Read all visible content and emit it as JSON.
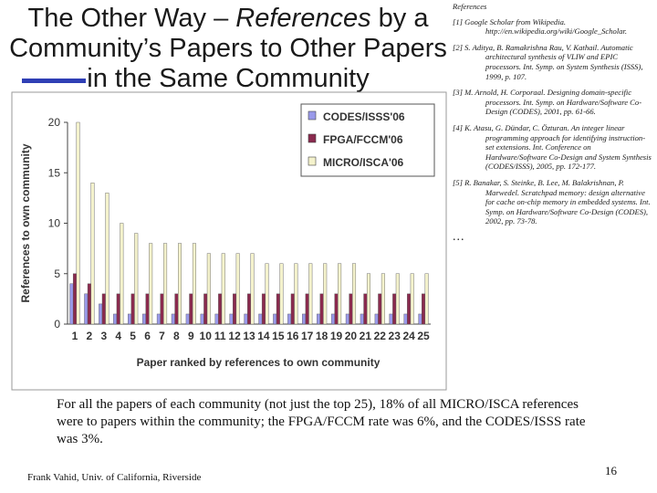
{
  "slide": {
    "title_line1_a": "The Other Way – ",
    "title_line1_em": "References",
    "title_line1_b": " by a",
    "title_line2": "Community’s Papers to Other Papers",
    "title_line3": "in the Same Community",
    "caption": "For all the papers of each community (not just the top 25), 18% of all MICRO/ISCA references were to papers within the community; the FPGA/FCCM rate was 6%, and the CODES/ISSS rate was 3%.",
    "footer": "Frank Vahid, Univ. of California, Riverside",
    "page_number": "16"
  },
  "references": {
    "heading": "References",
    "items": [
      "[1] Google Scholar from Wikipedia. http://en.wikipedia.org/wiki/Google_Scholar.",
      "[2] S. Aditya, B. Ramakrishna Rau, V. Kathail. Automatic architectural synthesis of VLIW and EPIC processors. Int. Symp. on System Synthesis (ISSS), 1999, p. 107.",
      "[3] M. Arnold, H. Corporaal. Designing domain-specific processors. Int. Symp. on Hardware/Software Co-Design (CODES), 2001, pp. 61-66.",
      "[4] K. Atasu, G. Dündar, C. Özturan. An integer linear programming approach for identifying instruction-set extensions. Int. Conference on Hardware/Software Co-Design and System Synthesis (CODES/ISSS), 2005, pp. 172-177.",
      "[5] R. Banakar, S. Steinke, B. Lee, M. Balakrishnan, P. Marwedel. Scratchpad memory: design alternative for cache on-chip memory in embedded systems. Int. Symp. on Hardware/Software Co-Design (CODES), 2002, pp. 73-78."
    ],
    "ellipsis": "..."
  },
  "chart_data": {
    "type": "bar",
    "title": "",
    "xlabel": "Paper ranked by references to own community",
    "ylabel": "References to own community",
    "ylim": [
      0,
      20
    ],
    "yticks": [
      0,
      5,
      10,
      15,
      20
    ],
    "grid": false,
    "legend_position": "top-right",
    "categories": [
      "1",
      "2",
      "3",
      "4",
      "5",
      "6",
      "7",
      "8",
      "9",
      "10",
      "11",
      "12",
      "13",
      "14",
      "15",
      "16",
      "17",
      "18",
      "19",
      "20",
      "21",
      "22",
      "23",
      "24",
      "25"
    ],
    "series": [
      {
        "name": "CODES/ISSS'06",
        "color": "#9a9aea",
        "values": [
          4,
          3,
          2,
          1,
          1,
          1,
          1,
          1,
          1,
          1,
          1,
          1,
          1,
          1,
          1,
          1,
          1,
          1,
          1,
          1,
          1,
          1,
          1,
          1,
          1
        ]
      },
      {
        "name": "FPGA/FCCM'06",
        "color": "#8a2a4e",
        "values": [
          5,
          4,
          3,
          3,
          3,
          3,
          3,
          3,
          3,
          3,
          3,
          3,
          3,
          3,
          3,
          3,
          3,
          3,
          3,
          3,
          3,
          3,
          3,
          3,
          3
        ]
      },
      {
        "name": "MICRO/ISCA'06",
        "color": "#f4f2cc",
        "values": [
          20,
          14,
          13,
          10,
          9,
          8,
          8,
          8,
          8,
          7,
          7,
          7,
          7,
          6,
          6,
          6,
          6,
          6,
          6,
          6,
          5,
          5,
          5,
          5,
          5
        ]
      }
    ]
  }
}
